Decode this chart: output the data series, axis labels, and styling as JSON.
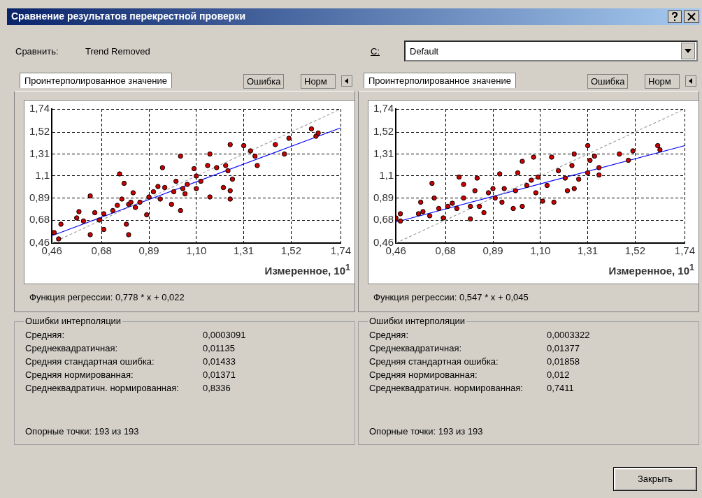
{
  "chart_data": [
    {
      "type": "other",
      "title": "Сравнение результатов перекрестной проверки",
      "annotations": [
        "Сравнить:",
        "Trend Removed",
        "C:",
        "Default",
        "Закрыть"
      ]
    },
    {
      "type": "scatter",
      "xlabel": "Измеренное, 10$^{1}$",
      "xlim": [
        0.46,
        1.74
      ],
      "ylim": [
        0.46,
        1.74
      ],
      "xticks": [
        {
          "value": 0.46,
          "label": "0,46"
        },
        {
          "value": 0.68,
          "label": "0,68"
        },
        {
          "value": 0.89,
          "label": "0,89"
        },
        {
          "value": 1.1,
          "label": "1,10"
        },
        {
          "value": 1.31,
          "label": "1,31"
        },
        {
          "value": 1.52,
          "label": "1,52"
        },
        {
          "value": 1.74,
          "label": "1,74"
        }
      ],
      "yticks": [
        {
          "value": 0.46,
          "label": "0,46"
        },
        {
          "value": 0.68,
          "label": "0,68"
        },
        {
          "value": 0.89,
          "label": "0,89"
        },
        {
          "value": 1.1,
          "label": "1,1"
        },
        {
          "value": 1.31,
          "label": "1,31"
        },
        {
          "value": 1.52,
          "label": "1,52"
        },
        {
          "value": 1.74,
          "label": "1,74"
        }
      ],
      "grid": true,
      "legend": false,
      "marker": "circle",
      "series": [
        {
          "type": "line",
          "color": "#a0a0a0",
          "line_style": "dashed",
          "marker": "none",
          "x": [
            0.46,
            1.74
          ],
          "values": [
            0.46,
            1.74
          ]
        },
        {
          "type": "line",
          "color": "#0000ff",
          "line_style": "solid",
          "marker": "none",
          "x": [
            0.46,
            1.74
          ],
          "values": [
            0.53,
            1.56
          ]
        },
        {
          "type": "scatter",
          "color": "#cc0000",
          "x": [
            0.47,
            0.5,
            0.49,
            0.58,
            0.57,
            0.6,
            0.63,
            0.63,
            0.65,
            0.67,
            0.69,
            0.69,
            0.73,
            0.75,
            0.76,
            0.78,
            0.77,
            0.79,
            0.8,
            0.8,
            0.81,
            0.83,
            0.82,
            0.85,
            0.88,
            0.89,
            0.91,
            0.93,
            0.94,
            0.95,
            0.96,
            0.99,
            1.0,
            1.01,
            1.03,
            1.03,
            1.04,
            1.05,
            1.06,
            1.09,
            1.1,
            1.1,
            1.12,
            1.15,
            1.16,
            1.16,
            1.19,
            1.22,
            1.23,
            1.24,
            1.25,
            1.25,
            1.25,
            1.26,
            1.31,
            1.34,
            1.36,
            1.37,
            1.45,
            1.49,
            1.51,
            1.61,
            1.63,
            1.64
          ],
          "values": [
            0.56,
            0.64,
            0.5,
            0.76,
            0.7,
            0.67,
            0.91,
            0.54,
            0.75,
            0.68,
            0.74,
            0.59,
            0.77,
            0.82,
            1.12,
            1.03,
            0.88,
            0.64,
            0.54,
            0.83,
            0.85,
            0.8,
            0.94,
            0.85,
            0.73,
            0.9,
            0.95,
            1.0,
            0.88,
            1.18,
            0.99,
            0.83,
            0.95,
            1.05,
            0.77,
            1.29,
            0.98,
            0.93,
            1.02,
            1.17,
            1.1,
            0.98,
            1.05,
            1.2,
            1.31,
            0.9,
            1.18,
            0.99,
            1.2,
            1.15,
            0.96,
            0.88,
            1.4,
            1.07,
            1.39,
            1.34,
            1.29,
            1.2,
            1.4,
            1.31,
            1.46,
            1.55,
            1.48,
            1.51
          ]
        }
      ],
      "annotations": [
        "Проинтерполированное значение",
        "Ошибка",
        "Норм",
        "Функция регрессии: 0,778 * x + 0,022",
        "Ошибки интерполяции",
        "Средняя:",
        "0,0003091",
        "Среднеквадратичная:",
        "0,01135",
        "Средняя стандартная ошибка:",
        "0,01433",
        "Средняя нормированная:",
        "0,01371",
        "Среднеквадратичн. нормированная:",
        "0,8336",
        "Опорные точки: 193 из 193"
      ]
    },
    {
      "type": "scatter",
      "xlabel": "Измеренное, 10$^{1}$",
      "xlim": [
        0.46,
        1.74
      ],
      "ylim": [
        0.46,
        1.74
      ],
      "xticks": [
        {
          "value": 0.46,
          "label": "0,46"
        },
        {
          "value": 0.68,
          "label": "0,68"
        },
        {
          "value": 0.89,
          "label": "0,89"
        },
        {
          "value": 1.1,
          "label": "1,10"
        },
        {
          "value": 1.31,
          "label": "1,31"
        },
        {
          "value": 1.52,
          "label": "1,52"
        },
        {
          "value": 1.74,
          "label": "1,74"
        }
      ],
      "yticks": [
        {
          "value": 0.46,
          "label": "0,46"
        },
        {
          "value": 0.68,
          "label": "0,68"
        },
        {
          "value": 0.89,
          "label": "0,89"
        },
        {
          "value": 1.1,
          "label": "1,1"
        },
        {
          "value": 1.31,
          "label": "1,31"
        },
        {
          "value": 1.52,
          "label": "1,52"
        },
        {
          "value": 1.74,
          "label": "1,74"
        }
      ],
      "grid": true,
      "legend": false,
      "marker": "circle",
      "series": [
        {
          "type": "line",
          "color": "#a0a0a0",
          "line_style": "dashed",
          "marker": "none",
          "x": [
            0.46,
            1.74
          ],
          "values": [
            0.46,
            1.74
          ]
        },
        {
          "type": "line",
          "color": "#0000ff",
          "line_style": "solid",
          "marker": "none",
          "x": [
            0.46,
            1.74
          ],
          "values": [
            0.66,
            1.39
          ]
        },
        {
          "type": "scatter",
          "color": "#cc0000",
          "x": [
            0.46,
            0.48,
            0.48,
            0.56,
            0.57,
            0.58,
            0.61,
            0.62,
            0.63,
            0.65,
            0.67,
            0.69,
            0.71,
            0.73,
            0.74,
            0.76,
            0.76,
            0.79,
            0.79,
            0.81,
            0.82,
            0.83,
            0.85,
            0.87,
            0.89,
            0.9,
            0.92,
            0.93,
            0.94,
            0.98,
            0.99,
            1.0,
            1.02,
            1.02,
            1.04,
            1.06,
            1.07,
            1.08,
            1.09,
            1.11,
            1.13,
            1.15,
            1.16,
            1.18,
            1.21,
            1.22,
            1.24,
            1.25,
            1.25,
            1.27,
            1.31,
            1.31,
            1.32,
            1.34,
            1.36,
            1.36,
            1.45,
            1.49,
            1.51,
            1.62,
            1.63
          ],
          "values": [
            0.7,
            0.67,
            0.74,
            0.74,
            0.85,
            0.76,
            0.72,
            1.03,
            0.89,
            0.79,
            0.7,
            0.81,
            0.84,
            0.79,
            1.09,
            1.02,
            0.89,
            0.69,
            0.81,
            0.96,
            1.08,
            0.81,
            0.75,
            0.94,
            0.98,
            0.89,
            1.12,
            0.85,
            0.98,
            0.79,
            0.96,
            1.13,
            0.81,
            1.24,
            1.01,
            1.06,
            1.28,
            0.94,
            1.09,
            0.86,
            1.01,
            1.28,
            0.85,
            1.15,
            1.08,
            0.96,
            1.2,
            1.31,
            0.98,
            1.07,
            1.39,
            1.13,
            1.25,
            1.29,
            1.11,
            1.18,
            1.31,
            1.25,
            1.34,
            1.39,
            1.35
          ]
        }
      ],
      "annotations": [
        "Проинтерполированное значение",
        "Ошибка",
        "Норм",
        "Функция регрессии: 0,547 * x + 0,045",
        "Ошибки интерполяции",
        "Средняя:",
        "0,0003322",
        "Среднеквадратичная:",
        "0,01377",
        "Средняя стандартная ошибка:",
        "0,01858",
        "Средняя нормированная:",
        "0,012",
        "Среднеквадратичн. нормированная:",
        "0,7411",
        "Опорные точки: 193 из 193"
      ]
    }
  ]
}
